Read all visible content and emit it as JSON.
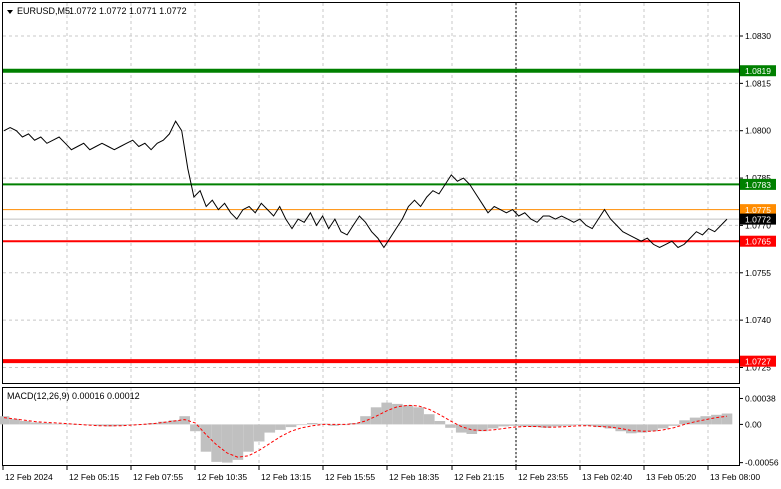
{
  "window": {
    "symbol_title": "EURUSD,M5",
    "ohlc": "1.0772 1.0772 1.0771 1.0772",
    "indicator_title": "MACD(12,26,9) 0.00016 0.00012"
  },
  "colors": {
    "support": "#ff0000",
    "resistance": "#008000",
    "price_line": "#000000",
    "histogram": "#c0c0c0",
    "signal": "#ff0000",
    "current_marker": "#ff8c00"
  },
  "chart_data": [
    {
      "type": "line",
      "title": "EURUSD,M5",
      "ylim": [
        1.0722,
        1.0842
      ],
      "yticks": [
        1.083,
        1.0815,
        1.08,
        1.0785,
        1.077,
        1.0755,
        1.074,
        1.0725
      ],
      "ytick_labels": [
        "1.0830",
        "1.0815",
        "1.0800",
        "1.0785",
        "1.0770",
        "1.0755",
        "1.0740",
        "1.0725"
      ],
      "x_labels": [
        "12 Feb 2024",
        "12 Feb 05:15",
        "12 Feb 07:55",
        "12 Feb 10:35",
        "12 Feb 13:15",
        "12 Feb 15:55",
        "12 Feb 18:35",
        "12 Feb 21:15",
        "12 Feb 23:55",
        "13 Feb 02:40",
        "13 Feb 05:20",
        "13 Feb 08:00"
      ],
      "levels": [
        {
          "value": 1.0819,
          "label": "1.0819",
          "kind": "resistance"
        },
        {
          "value": 1.0783,
          "label": "1.0783",
          "kind": "resistance"
        },
        {
          "value": 1.0775,
          "label": "1.0775",
          "kind": "current"
        },
        {
          "value": 1.0772,
          "label": "1.0772",
          "kind": "last"
        },
        {
          "value": 1.0765,
          "label": "1.0765",
          "kind": "support"
        },
        {
          "value": 1.0727,
          "label": "1.0727",
          "kind": "support"
        }
      ],
      "series": [
        {
          "values": [
            1.08,
            1.0801,
            1.08,
            1.0798,
            1.0799,
            1.0797,
            1.0798,
            1.0796,
            1.0797,
            1.0798,
            1.0796,
            1.0794,
            1.0795,
            1.0796,
            1.0794,
            1.0795,
            1.0796,
            1.0795,
            1.0794,
            1.0795,
            1.0796,
            1.0797,
            1.0795,
            1.0796,
            1.0794,
            1.0796,
            1.0797,
            1.0799,
            1.0803,
            1.08,
            1.0788,
            1.0779,
            1.0781,
            1.0776,
            1.0778,
            1.0775,
            1.0777,
            1.0774,
            1.0772,
            1.0775,
            1.0776,
            1.0774,
            1.0777,
            1.0775,
            1.0773,
            1.0776,
            1.0772,
            1.0769,
            1.0772,
            1.0771,
            1.0774,
            1.077,
            1.0773,
            1.0769,
            1.0772,
            1.0768,
            1.0767,
            1.077,
            1.0773,
            1.0771,
            1.0768,
            1.0766,
            1.0763,
            1.0766,
            1.0769,
            1.0772,
            1.0776,
            1.0778,
            1.0776,
            1.0779,
            1.0781,
            1.078,
            1.0783,
            1.0786,
            1.0784,
            1.0785,
            1.0783,
            1.078,
            1.0777,
            1.0774,
            1.0776,
            1.0775,
            1.0774,
            1.0775,
            1.0773,
            1.0774,
            1.0772,
            1.0771,
            1.0773,
            1.0773,
            1.0772,
            1.0773,
            1.0772,
            1.0771,
            1.0772,
            1.077,
            1.0769,
            1.0772,
            1.0775,
            1.0772,
            1.077,
            1.0768,
            1.0767,
            1.0766,
            1.0765,
            1.0766,
            1.0764,
            1.0763,
            1.0764,
            1.0765,
            1.0763,
            1.0764,
            1.0766,
            1.0768,
            1.0767,
            1.0769,
            1.0768,
            1.077,
            1.0772
          ]
        }
      ]
    },
    {
      "type": "bar",
      "title": "MACD(12,26,9) 0.00016 0.00012",
      "ylim": [
        -0.00058,
        0.00046
      ],
      "yticks": [
        0.00038,
        0.0,
        -0.00056
      ],
      "ytick_labels": [
        "0.00038",
        "0.00",
        "-0.00056"
      ],
      "series": [
        {
          "values": [
            0.00012,
            8e-05,
            5e-05,
            3e-05,
            2e-05,
            1e-05,
            1e-05,
            0.0,
            -1e-05,
            -2e-05,
            -3e-05,
            -2e-05,
            -1e-05,
            0.0,
            2e-05,
            4e-05,
            6e-05,
            0.00012,
            -0.0001,
            -0.0004,
            -0.00055,
            -0.00056,
            -0.00052,
            -0.0004,
            -0.00025,
            -0.00012,
            -8e-05,
            -4e-05,
            -1e-05,
            2e-05,
            1e-05,
            -2e-05,
            -1e-05,
            2e-05,
            0.00012,
            0.00025,
            0.00032,
            0.0003,
            0.00028,
            0.00025,
            0.00015,
            5e-05,
            -5e-05,
            -0.00012,
            -0.00014,
            -0.0001,
            -6e-05,
            -3e-05,
            -2e-05,
            -3e-05,
            -4e-05,
            -5e-05,
            -3e-05,
            -2e-05,
            -1e-05,
            -2e-05,
            -4e-05,
            -6e-05,
            -0.0001,
            -0.00013,
            -0.00012,
            -0.0001,
            -6e-05,
            -2e-05,
            6e-05,
            0.0001,
            0.00012,
            0.00014,
            0.00016
          ]
        },
        {
          "values": [
            0.0001,
            8e-05,
            6e-05,
            4e-05,
            3e-05,
            2e-05,
            1e-05,
            0.0,
            -1e-05,
            -2e-05,
            -2e-05,
            -2e-05,
            -1e-05,
            0.0,
            1e-05,
            3e-05,
            5e-05,
            7e-05,
            2e-05,
            -0.00015,
            -0.0003,
            -0.00042,
            -0.00048,
            -0.00046,
            -0.00038,
            -0.00028,
            -0.00018,
            -0.0001,
            -5e-05,
            -2e-05,
            0.0,
            0.0,
            0.0,
            1e-05,
            5e-05,
            0.00012,
            0.0002,
            0.00026,
            0.00028,
            0.00027,
            0.00022,
            0.00014,
            5e-05,
            -3e-05,
            -8e-05,
            -9e-05,
            -8e-05,
            -6e-05,
            -4e-05,
            -3e-05,
            -3e-05,
            -4e-05,
            -4e-05,
            -3e-05,
            -2e-05,
            -2e-05,
            -3e-05,
            -4e-05,
            -6e-05,
            -9e-05,
            -0.0001,
            -0.0001,
            -8e-05,
            -5e-05,
            0.0,
            4e-05,
            7e-05,
            0.0001,
            0.00012
          ]
        }
      ]
    }
  ]
}
